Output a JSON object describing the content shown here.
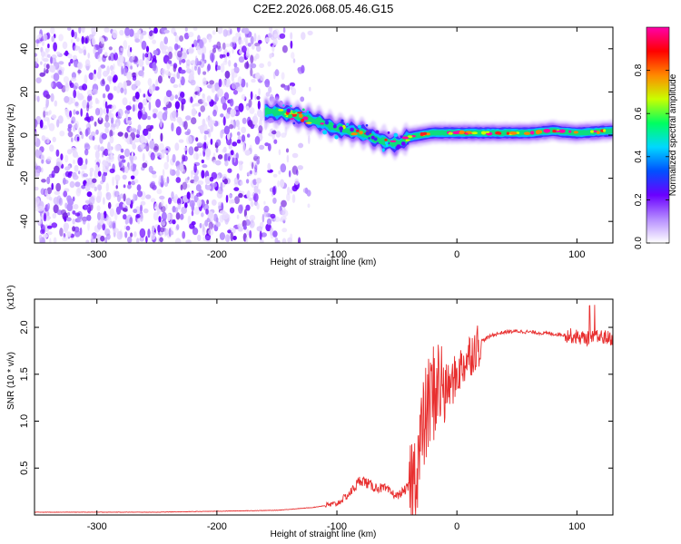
{
  "title": "C2E2.2026.068.05.46.G15",
  "colors": {
    "snr_line": "#e83030",
    "scatter_fill": "#7a2de0",
    "frame": "#000000"
  },
  "chart_data": [
    {
      "type": "heatmap",
      "xlabel": "Height of straight line (km)",
      "ylabel": "Frequency (Hz)",
      "xlim": [
        -352,
        130
      ],
      "ylim": [
        -50,
        50
      ],
      "x_ticks": [
        -300,
        -200,
        -100,
        0,
        100
      ],
      "x_tick_labels": [
        "-300",
        "-200",
        "-100",
        "0",
        "100"
      ],
      "y_ticks": [
        -40,
        -20,
        0,
        20,
        40
      ],
      "y_tick_labels": [
        "-40",
        "-20",
        "0",
        "20",
        "40"
      ],
      "colorbar": {
        "label": "Normalized spectral amplitude",
        "range": [
          0,
          1
        ],
        "ticks": [
          0.0,
          0.2,
          0.4,
          0.6,
          0.8
        ],
        "tick_labels": [
          "0.0",
          "0.2",
          "0.4",
          "0.6",
          "0.8"
        ],
        "colormap": [
          "#ffffff",
          "#b58cff",
          "#6a00ff",
          "#0050ff",
          "#00d8ff",
          "#00ff60",
          "#c8ff00",
          "#ff8800",
          "#ff0000",
          "#ff00aa"
        ]
      },
      "noise_region_x": [
        -352,
        -130
      ],
      "signal_track": {
        "x": [
          -160,
          -140,
          -120,
          -100,
          -80,
          -60,
          -50,
          -40,
          -20,
          0,
          20,
          40,
          60,
          80,
          100,
          130
        ],
        "y": [
          11,
          10,
          7,
          3,
          1,
          -3,
          -4,
          -1,
          1,
          1,
          1,
          1,
          1,
          2,
          1,
          2
        ]
      }
    },
    {
      "type": "line",
      "xlabel": "Height of straight line (km)",
      "ylabel": "SNR (10 * v/v)",
      "y_multiplier": "(x10⁴)",
      "xlim": [
        -352,
        130
      ],
      "ylim": [
        0,
        2.3
      ],
      "x_ticks": [
        -300,
        -200,
        -100,
        0,
        100
      ],
      "x_tick_labels": [
        "-300",
        "-200",
        "-100",
        "0",
        "100"
      ],
      "y_ticks": [
        0.5,
        1.0,
        1.5,
        2.0
      ],
      "y_tick_labels": [
        "0.5",
        "1.0",
        "1.5",
        "2.0"
      ],
      "series": [
        {
          "x": [
            -352,
            -300,
            -250,
            -200,
            -150,
            -120,
            -100,
            -90,
            -80,
            -70,
            -60,
            -50,
            -45,
            -40,
            -35,
            -30,
            -25,
            -20,
            -15,
            -10,
            -5,
            0,
            10,
            20,
            30,
            40,
            50,
            60,
            70,
            80,
            90,
            100,
            110,
            120,
            130
          ],
          "y": [
            0.03,
            0.03,
            0.03,
            0.04,
            0.05,
            0.08,
            0.12,
            0.22,
            0.38,
            0.3,
            0.28,
            0.2,
            0.25,
            0.3,
            0.4,
            0.8,
            1.1,
            1.3,
            1.4,
            1.35,
            1.38,
            1.5,
            1.7,
            1.85,
            1.92,
            1.95,
            1.96,
            1.95,
            1.94,
            1.93,
            1.92,
            1.9,
            1.88,
            1.9,
            1.88
          ]
        }
      ]
    }
  ]
}
